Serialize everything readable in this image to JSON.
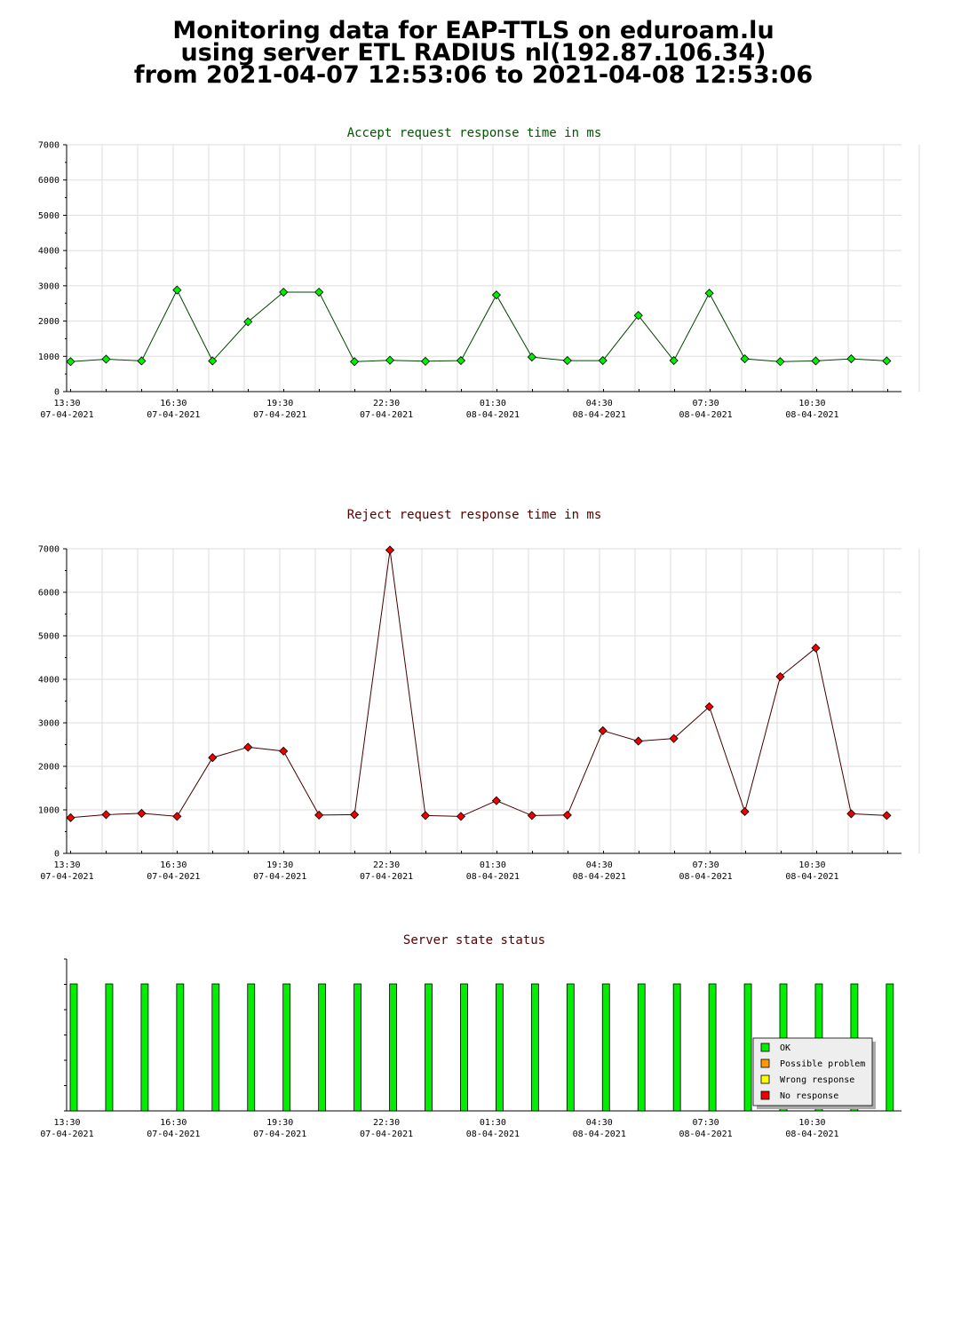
{
  "heading": {
    "line1": "Monitoring data for EAP-TTLS on eduroam.lu",
    "line2": "using server ETL RADIUS nl(192.87.106.34)",
    "line3": "from 2021-04-07 12:53:06 to 2021-04-08 12:53:06"
  },
  "x_ticks": [
    {
      "time": "13:30",
      "date": "07-04-2021"
    },
    {
      "time": "16:30",
      "date": "07-04-2021"
    },
    {
      "time": "19:30",
      "date": "07-04-2021"
    },
    {
      "time": "22:30",
      "date": "07-04-2021"
    },
    {
      "time": "01:30",
      "date": "08-04-2021"
    },
    {
      "time": "04:30",
      "date": "08-04-2021"
    },
    {
      "time": "07:30",
      "date": "08-04-2021"
    },
    {
      "time": "10:30",
      "date": "08-04-2021"
    }
  ],
  "colors": {
    "accept_line": "#004400",
    "accept_marker": "#00ee00",
    "accept_title": "#005500",
    "reject_line": "#440000",
    "reject_marker": "#ee0000",
    "reject_title": "#550000",
    "status_title": "#550000",
    "ok": "#00ee00",
    "possible_problem": "#ff9900",
    "wrong_response": "#ffff00",
    "no_response": "#ee0000"
  },
  "chart_data": [
    {
      "type": "line",
      "title": "Accept request response time in ms",
      "ylim": [
        0,
        7000
      ],
      "y_ticks": [
        0,
        1000,
        2000,
        3000,
        4000,
        5000,
        6000,
        7000
      ],
      "grid": true,
      "x": [
        "13:30",
        "14:30",
        "15:30",
        "16:30",
        "17:30",
        "18:30",
        "19:30",
        "20:30",
        "21:30",
        "22:30",
        "23:30",
        "00:30",
        "01:30",
        "02:30",
        "03:30",
        "04:30",
        "05:30",
        "06:30",
        "07:30",
        "08:30",
        "09:30",
        "10:30",
        "11:30",
        "12:30"
      ],
      "values": [
        850,
        920,
        870,
        2880,
        870,
        1980,
        2820,
        2820,
        850,
        890,
        860,
        880,
        2740,
        980,
        880,
        880,
        2160,
        880,
        2790,
        930,
        850,
        870,
        930,
        870
      ]
    },
    {
      "type": "line",
      "title": "Reject request response time in ms",
      "ylim": [
        0,
        7000
      ],
      "y_ticks": [
        0,
        1000,
        2000,
        3000,
        4000,
        5000,
        6000,
        7000
      ],
      "grid": true,
      "x": [
        "13:30",
        "14:30",
        "15:30",
        "16:30",
        "17:30",
        "18:30",
        "19:30",
        "20:30",
        "21:30",
        "22:30",
        "23:30",
        "00:30",
        "01:30",
        "02:30",
        "03:30",
        "04:30",
        "05:30",
        "06:30",
        "07:30",
        "08:30",
        "09:30",
        "10:30",
        "11:30",
        "12:30"
      ],
      "values": [
        820,
        890,
        920,
        850,
        2200,
        2440,
        2350,
        880,
        890,
        6970,
        870,
        850,
        1210,
        870,
        880,
        2820,
        2580,
        2640,
        3370,
        960,
        4060,
        4720,
        910,
        870
      ]
    },
    {
      "type": "bar",
      "title": "Server state status",
      "x": [
        "13:30",
        "14:30",
        "15:30",
        "16:30",
        "17:30",
        "18:30",
        "19:30",
        "20:30",
        "21:30",
        "22:30",
        "23:30",
        "00:30",
        "01:30",
        "02:30",
        "03:30",
        "04:30",
        "05:30",
        "06:30",
        "07:30",
        "08:30",
        "09:30",
        "10:30",
        "11:30",
        "12:30"
      ],
      "status": [
        "OK",
        "OK",
        "OK",
        "OK",
        "OK",
        "OK",
        "OK",
        "OK",
        "OK",
        "OK",
        "OK",
        "OK",
        "OK",
        "OK",
        "OK",
        "OK",
        "OK",
        "OK",
        "OK",
        "OK",
        "OK",
        "OK",
        "OK",
        "OK"
      ],
      "legend": [
        "OK",
        "Possible problem",
        "Wrong response",
        "No response"
      ],
      "legend_position": "bottom-right"
    }
  ]
}
